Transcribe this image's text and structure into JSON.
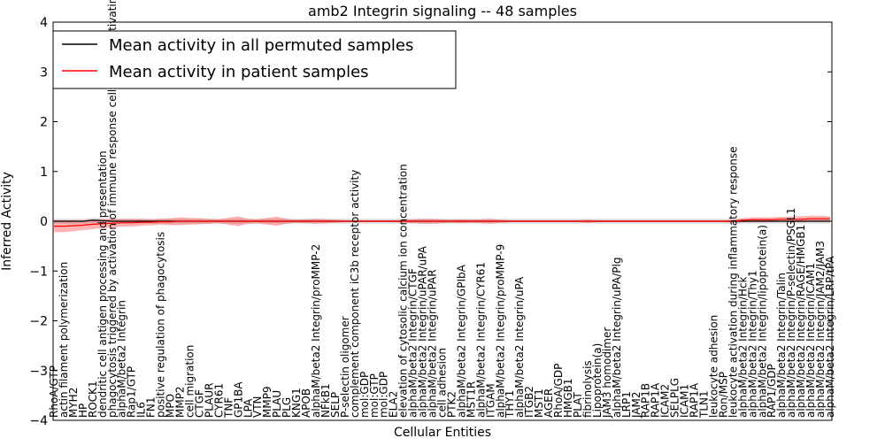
{
  "chart_data": {
    "type": "line",
    "title": "amb2 Integrin signaling -- 48 samples",
    "xlabel": "Cellular Entities",
    "ylabel": "Inferred Activity",
    "ylim": [
      -4,
      4
    ],
    "yticks": [
      -4,
      -3,
      -2,
      -1,
      0,
      1,
      2,
      3,
      4
    ],
    "grid": false,
    "legend_position": "top-left",
    "categories": [
      "RhoA/GTP",
      "actin filament polymerization",
      "MYH2",
      "HP",
      "ROCK1",
      "dendritic cell antigen processing and presentation",
      "phagocytosis triggered by activation of immune response cell surface activating receptor",
      "alphaM/beta2 Integrin",
      "Rap1/GTP",
      "IL6",
      "FN1",
      "positive regulation of phagocytosis",
      "MPO",
      "MMP2",
      "cell migration",
      "CTGF",
      "PLAUR",
      "CYR61",
      "TNF",
      "GP1BA",
      "LPA",
      "VTN",
      "MMP9",
      "PLAU",
      "PLG",
      "KNG1",
      "APOB",
      "alphaM/beta2 Integrin/proMMP-2",
      "NFkB1",
      "SELP",
      "P-selectin oligomer",
      "complement component iC3b receptor activity",
      "mol:GDP",
      "mol:GTP",
      "mol:GDP",
      "ELA2",
      "elevation of cytosolic calcium ion concentration",
      "alphaM/beta2 Integrin/CTGF",
      "alphaM/beta2 Integrin/uPAR/uPA",
      "alphaM/beta2 Integrin/uPAR",
      "cell adhesion",
      "PTK2",
      "alphaM/beta2 Integrin/GPIbA",
      "MST1R",
      "alphaM/beta2 Integrin/CYR61",
      "ITGAM",
      "alphaM/beta2 Integrin/proMMP-9",
      "THY1",
      "alphaM/beta2 Integrin/uPA",
      "ITGB2",
      "MST1",
      "AGER",
      "RhoA/GDP",
      "HMGB1",
      "PLAT",
      "fibrinolysis",
      "Lipoprotein(a)",
      "JAM3 homodimer",
      "alphaM/beta2 Integrin/uPA/Plg",
      "LRP1",
      "JAM2",
      "RAP1B",
      "RAP1A",
      "ICAM2",
      "SELPLG",
      "ICAM1",
      "RAP1A",
      "TLN1",
      "leukocyte adhesion",
      "Ron/MSP",
      "leukocyte activation during inflammatory response",
      "alphaM/beta2 Integrin/Hck",
      "alphaM/beta2 Integrin/Thy1",
      "alphaM/beta2 Integrin/lipoprotein(a)",
      "RAP1/GDP",
      "alphaM/beta2 Integrin/Talin",
      "alphaM/beta2 Integrin/P-selectin/PSGL1",
      "alphaM/beta2 Integrin/RAGE/HMGB1",
      "alphaM/beta2 Integrin/ICAM1",
      "alphaM/beta2 Integrin/JAM2/JAM3",
      "alphaM/beta2 Integrin/LRP/tPA"
    ],
    "series": [
      {
        "name": "Mean activity in all permuted samples",
        "color": "#000000",
        "values": [
          0,
          0,
          0,
          0,
          0.02,
          0.01,
          0,
          0,
          0,
          0,
          0,
          0,
          0,
          0,
          0,
          0,
          0,
          0,
          0,
          0,
          0,
          0,
          0,
          0,
          0,
          0,
          0,
          0,
          0,
          0,
          0,
          0,
          0,
          0,
          0,
          0,
          0,
          0,
          0,
          0,
          0,
          0,
          0,
          0,
          0,
          0,
          0,
          0,
          0,
          0,
          0,
          0,
          0,
          0,
          0,
          0,
          0,
          0,
          0,
          0,
          0,
          0,
          0,
          0,
          0,
          0,
          0,
          0,
          0,
          0,
          0,
          0,
          0,
          0,
          0,
          0,
          0,
          0,
          0,
          0,
          0
        ]
      },
      {
        "name": "Mean activity in patient samples",
        "color": "#ff0000",
        "values": [
          -0.1,
          -0.1,
          -0.09,
          -0.08,
          -0.06,
          -0.05,
          -0.04,
          -0.03,
          -0.03,
          -0.02,
          -0.02,
          -0.01,
          -0.01,
          0,
          0,
          0,
          0,
          0,
          0,
          0,
          0,
          0,
          0,
          0,
          0,
          0,
          0,
          0,
          0,
          0,
          0,
          0,
          0,
          0,
          0,
          0,
          0,
          0,
          0,
          0,
          0,
          0,
          0,
          0,
          0,
          0,
          0,
          0,
          0,
          0,
          0,
          0,
          0,
          0,
          0,
          0,
          0,
          0,
          0,
          0,
          0,
          0,
          0,
          0,
          0,
          0,
          0,
          0,
          0,
          0,
          0,
          0.02,
          0.03,
          0.03,
          0.03,
          0.04,
          0.04,
          0.04,
          0.05,
          0.05,
          0.05
        ]
      }
    ],
    "patient_band_halfwidth": [
      0.12,
      0.12,
      0.11,
      0.1,
      0.1,
      0.09,
      0.09,
      0.08,
      0.08,
      0.07,
      0.06,
      0.06,
      0.07,
      0.08,
      0.07,
      0.06,
      0.05,
      0.04,
      0.07,
      0.1,
      0.05,
      0.04,
      0.07,
      0.09,
      0.05,
      0.03,
      0.04,
      0.05,
      0.04,
      0.03,
      0.02,
      0.02,
      0.02,
      0.02,
      0.02,
      0.02,
      0.03,
      0.04,
      0.05,
      0.05,
      0.04,
      0.03,
      0.04,
      0.03,
      0.04,
      0.05,
      0.03,
      0.02,
      0.02,
      0.02,
      0.02,
      0.02,
      0.02,
      0.02,
      0.02,
      0.03,
      0.02,
      0.02,
      0.02,
      0.02,
      0.02,
      0.02,
      0.02,
      0.02,
      0.02,
      0.02,
      0.02,
      0.02,
      0.02,
      0.02,
      0.03,
      0.04,
      0.05,
      0.05,
      0.05,
      0.05,
      0.05,
      0.06,
      0.06,
      0.06,
      0.05
    ],
    "permuted_band_halfwidth": [
      0.05,
      0.05,
      0.05,
      0.05,
      0.05,
      0.05,
      0.05,
      0.05,
      0.05,
      0.05,
      0.05,
      0.05,
      0.05,
      0.05,
      0.05,
      0.05,
      0.05,
      0.05,
      0.05,
      0.05,
      0.05,
      0.05,
      0.05,
      0.05,
      0.05,
      0.05,
      0.05,
      0.05,
      0.05,
      0.05,
      0.05,
      0.05,
      0.05,
      0.05,
      0.05,
      0.05,
      0.05,
      0.05,
      0.05,
      0.05,
      0.05,
      0.05,
      0.05,
      0.05,
      0.05,
      0.05,
      0.05,
      0.05,
      0.05,
      0.05,
      0.05,
      0.05,
      0.05,
      0.05,
      0.05,
      0.05,
      0.05,
      0.05,
      0.05,
      0.05,
      0.05,
      0.05,
      0.05,
      0.05,
      0.05,
      0.05,
      0.05,
      0.05,
      0.05,
      0.05,
      0.05,
      0.05,
      0.05,
      0.05,
      0.05,
      0.05,
      0.05,
      0.05,
      0.05,
      0.05,
      0.05
    ]
  }
}
